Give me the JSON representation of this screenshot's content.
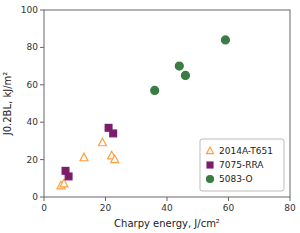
{
  "chart_data": {
    "type": "scatter",
    "xlabel": "Charpy energy, J/cm²",
    "ylabel": "J0.2BL, kJ/m²",
    "xlim": [
      0,
      80
    ],
    "ylim": [
      0,
      100
    ],
    "xticks": [
      0,
      20,
      40,
      60,
      80
    ],
    "yticks": [
      0,
      20,
      40,
      60,
      80,
      100
    ],
    "grid": false,
    "legend": "lower right",
    "series": [
      {
        "name": "2014A-T651",
        "marker": "triangle-open",
        "color": "#FFA040",
        "x": [
          5.5,
          6.5,
          13,
          19,
          22,
          23
        ],
        "values": [
          6,
          7,
          21,
          29,
          22,
          20
        ]
      },
      {
        "name": "7075-RRA",
        "marker": "square",
        "color": "#7B1D6B",
        "x": [
          7,
          8,
          21,
          22.5
        ],
        "values": [
          14,
          11,
          37,
          34
        ]
      },
      {
        "name": "5083-O",
        "marker": "circle",
        "color": "#3A7D44",
        "x": [
          36,
          44,
          46,
          59
        ],
        "values": [
          57,
          70,
          65,
          84
        ]
      }
    ]
  }
}
